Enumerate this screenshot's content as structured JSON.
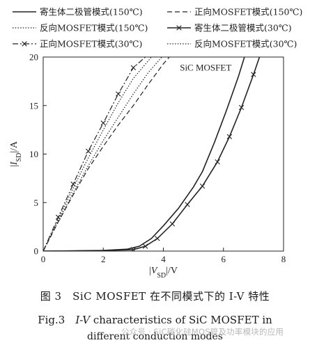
{
  "chart_data": {
    "type": "line",
    "xlabel": "|V_SD|/V",
    "ylabel": "|I_SD|/A",
    "xlim": [
      0,
      8
    ],
    "ylim": [
      0,
      20
    ],
    "xticks": [
      0,
      2,
      4,
      6,
      8
    ],
    "yticks": [
      0,
      5,
      10,
      15,
      20
    ],
    "grid": false,
    "legend_position": "top",
    "annotation": "SiC MOSFET",
    "series": [
      {
        "name": "寄生体二极管模式(150℃)",
        "style": "solid",
        "marker": "none",
        "x": [
          0,
          1,
          2,
          2.8,
          3.2,
          3.6,
          4.0,
          4.5,
          5.0,
          5.3,
          5.7,
          6.1,
          6.5,
          6.7
        ],
        "y": [
          0,
          0.02,
          0.07,
          0.2,
          0.5,
          1.3,
          2.6,
          4.4,
          6.6,
          8.2,
          11.2,
          14.5,
          18.0,
          20.0
        ]
      },
      {
        "name": "正向MOSFET模式(150℃)",
        "style": "dashed",
        "marker": "none",
        "x": [
          0,
          0.5,
          1.0,
          1.5,
          2.0,
          2.5,
          3.0,
          3.5,
          4.0,
          4.2
        ],
        "y": [
          0,
          3.0,
          5.8,
          8.5,
          10.8,
          13.0,
          15.0,
          17.2,
          19.3,
          20.0
        ]
      },
      {
        "name": "反向MOSFET模式(150℃)",
        "style": "dotted",
        "marker": "none",
        "x": [
          0,
          0.5,
          1.0,
          1.5,
          2.0,
          2.5,
          3.0,
          3.5,
          3.95
        ],
        "y": [
          0,
          3.1,
          6.0,
          8.8,
          11.4,
          13.8,
          16.2,
          18.4,
          20.0
        ]
      },
      {
        "name": "寄生体二极管模式(30℃)",
        "style": "solid",
        "marker": "x",
        "x": [
          0,
          1,
          2,
          3.0,
          3.4,
          3.8,
          4.3,
          4.8,
          5.3,
          5.8,
          6.2,
          6.6,
          7.0,
          7.2
        ],
        "y": [
          0,
          0.02,
          0.06,
          0.15,
          0.5,
          1.3,
          2.8,
          4.8,
          6.7,
          9.2,
          11.8,
          14.8,
          18.2,
          20.0
        ]
      },
      {
        "name": "正向MOSFET模式(30℃)",
        "style": "dashdot",
        "marker": "x",
        "x": [
          0,
          0.5,
          1.0,
          1.5,
          2.0,
          2.5,
          3.0,
          3.4
        ],
        "y": [
          0,
          3.5,
          6.9,
          10.3,
          13.2,
          16.2,
          18.9,
          20.0
        ]
      },
      {
        "name": "反向MOSFET模式(30℃)",
        "style": "dotted",
        "marker": "none",
        "x": [
          0,
          0.5,
          1.0,
          1.5,
          2.0,
          2.5,
          3.0,
          3.6
        ],
        "y": [
          0,
          3.3,
          6.5,
          9.6,
          12.5,
          15.3,
          17.8,
          20.0
        ]
      }
    ]
  },
  "caption": {
    "line1": "图 3　SiC MOSFET 在不同模式下的 I-V 特性",
    "line2_prefix": "Fig.3　",
    "line2_italic": "I-V",
    "line2_suffix": " characteristics of SiC MOSFET in",
    "line3": "different conduction modes"
  },
  "watermark": "公众号 · SiC碳化硅MOS管及功率模块的应用"
}
